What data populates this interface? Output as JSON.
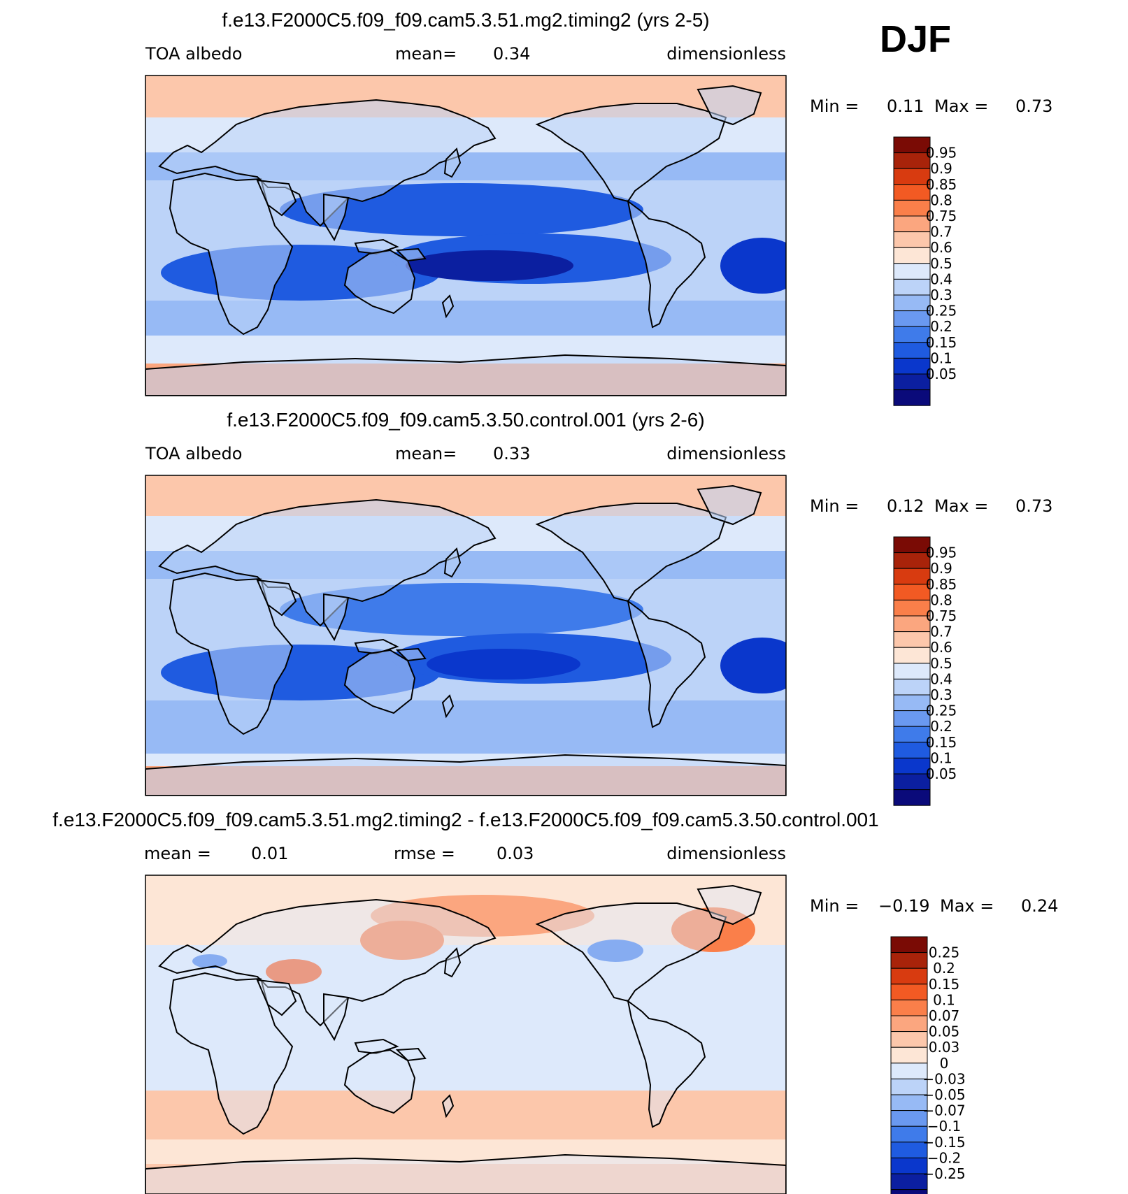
{
  "season": "DJF",
  "colors": {
    "sequential": [
      "#0a0a7a",
      "#0b1fa0",
      "#0a37cc",
      "#1f5be0",
      "#3f7bea",
      "#6a99f0",
      "#97baf5",
      "#bcd3f8",
      "#dde9fb",
      "#fde6d6",
      "#fcc7ab",
      "#fba67f",
      "#fa7f4a",
      "#f25a23",
      "#d83b10",
      "#a8230a",
      "#7a0b05"
    ],
    "difference": [
      "#0a0a7a",
      "#0b1fa0",
      "#0a37cc",
      "#1f5be0",
      "#3f7bea",
      "#6a99f0",
      "#97baf5",
      "#bcd3f8",
      "#dde9fb",
      "#fde6d6",
      "#fcc7ab",
      "#fba67f",
      "#fa7f4a",
      "#f25a23",
      "#d83b10",
      "#a8230a",
      "#7a0b05"
    ],
    "land_outline": "#000000"
  },
  "panels": [
    {
      "title": "f.e13.F2000C5.f09_f09.cam5.3.51.mg2.timing2 (yrs 2-5)",
      "left_label": "TOA albedo",
      "mid_label": "mean=",
      "mid_value": "0.34",
      "right_label": "dimensionless",
      "min_label": "Min =",
      "min_value": "0.11",
      "max_label": "Max =",
      "max_value": "0.73",
      "colorbar_labels": [
        "0.95",
        "0.9",
        "0.85",
        "0.8",
        "0.75",
        "0.7",
        "0.6",
        "0.5",
        "0.4",
        "0.3",
        "0.25",
        "0.2",
        "0.15",
        "0.1",
        "0.05"
      ]
    },
    {
      "title": "f.e13.F2000C5.f09_f09.cam5.3.50.control.001 (yrs 2-6)",
      "left_label": "TOA albedo",
      "mid_label": "mean=",
      "mid_value": "0.33",
      "right_label": "dimensionless",
      "min_label": "Min =",
      "min_value": "0.12",
      "max_label": "Max =",
      "max_value": "0.73",
      "colorbar_labels": [
        "0.95",
        "0.9",
        "0.85",
        "0.8",
        "0.75",
        "0.7",
        "0.6",
        "0.5",
        "0.4",
        "0.3",
        "0.25",
        "0.2",
        "0.15",
        "0.1",
        "0.05"
      ]
    },
    {
      "title": "f.e13.F2000C5.f09_f09.cam5.3.51.mg2.timing2 - f.e13.F2000C5.f09_f09.cam5.3.50.control.001",
      "left_label": "mean =",
      "left_value": "0.01",
      "mid_label": "rmse =",
      "mid_value": "0.03",
      "right_label": "dimensionless",
      "min_label": "Min =",
      "min_value": "−0.19",
      "max_label": "Max =",
      "max_value": "0.24",
      "colorbar_labels": [
        "0.25",
        "0.2",
        "0.15",
        "0.1",
        "0.07",
        "0.05",
        "0.03",
        "0",
        "−0.03",
        "−0.05",
        "−0.07",
        "−0.1",
        "−0.15",
        "−0.2",
        "−0.25"
      ]
    }
  ]
}
